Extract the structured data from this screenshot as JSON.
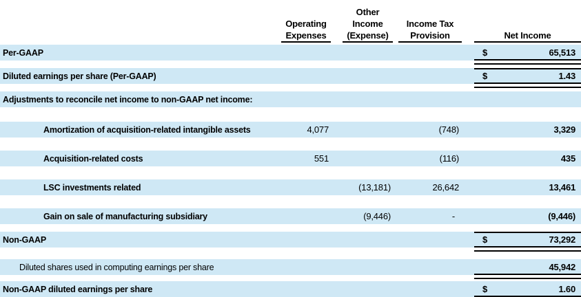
{
  "colors": {
    "band": "#cfe8f5",
    "text": "#000000",
    "border": "#000000"
  },
  "header": {
    "operating": {
      "l1": "Operating",
      "l2": "Expenses"
    },
    "other": {
      "l1": "Other",
      "l2": "Income",
      "l3": "(Expense)"
    },
    "tax": {
      "l1": "Income Tax",
      "l2": "Provision"
    },
    "net": {
      "l1": "Net Income"
    }
  },
  "rows": [
    {
      "label": "Per-GAAP",
      "dollar": "$",
      "net": "65,513"
    },
    {
      "label": "Diluted earnings per share (Per-GAAP)",
      "dollar": "$",
      "net": "1.43"
    },
    {
      "label": "Adjustments to reconcile net income to non-GAAP net income:"
    },
    {
      "label": "Amortization of acquisition-related intangible assets",
      "opex": "4,077",
      "tax": "(748)",
      "net": "3,329"
    },
    {
      "label": "Acquisition-related costs",
      "opex": "551",
      "tax": "(116)",
      "net": "435"
    },
    {
      "label": "LSC investments related",
      "other": "(13,181)",
      "tax": "26,642",
      "net": "13,461"
    },
    {
      "label": "Gain on sale of manufacturing subsidiary",
      "other": "(9,446)",
      "tax": "-",
      "net": "(9,446)"
    },
    {
      "label": "Non-GAAP",
      "dollar": "$",
      "net": "73,292"
    },
    {
      "label": "Diluted shares used in computing earnings per share",
      "net": "45,942"
    },
    {
      "label": "Non-GAAP diluted earnings per share",
      "dollar": "$",
      "net": "1.60"
    }
  ]
}
